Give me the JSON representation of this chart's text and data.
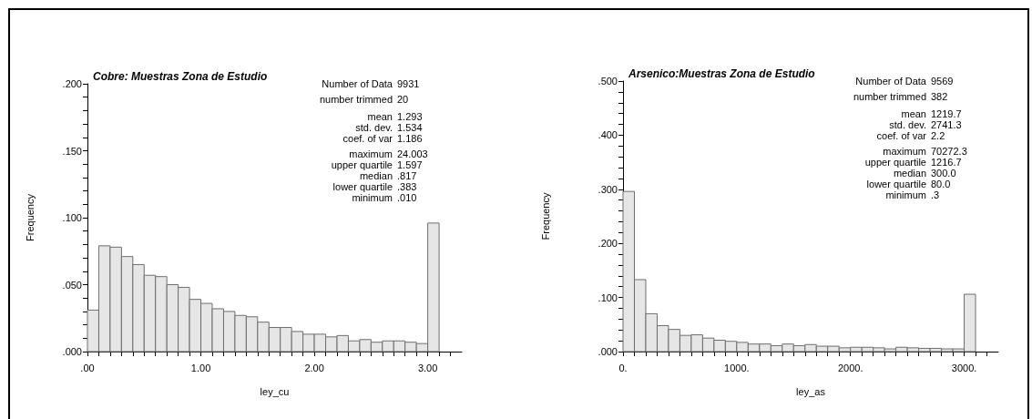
{
  "chart_data": [
    {
      "type": "histogram",
      "title": "Cobre: Muestras Zona de Estudio",
      "xlabel": "ley_cu",
      "ylabel": "Frequency",
      "color": "#e6e6e6",
      "bins": [
        0,
        0.1,
        0.2,
        0.3,
        0.4,
        0.5,
        0.6,
        0.7,
        0.8,
        0.9,
        1.0,
        1.1,
        1.2,
        1.3,
        1.4,
        1.5,
        1.6,
        1.7,
        1.8,
        1.9,
        2.0,
        2.1,
        2.2,
        2.3,
        2.4,
        2.5,
        2.6,
        2.7,
        2.8,
        2.9,
        3.0,
        3.1
      ],
      "values": [
        0.031,
        0.079,
        0.078,
        0.071,
        0.065,
        0.057,
        0.056,
        0.05,
        0.048,
        0.039,
        0.036,
        0.032,
        0.03,
        0.027,
        0.026,
        0.022,
        0.018,
        0.018,
        0.015,
        0.013,
        0.013,
        0.011,
        0.012,
        0.008,
        0.009,
        0.007,
        0.008,
        0.008,
        0.007,
        0.006,
        0.096
      ],
      "xlim": [
        0,
        3.3
      ],
      "xticks": [
        {
          "value": 0,
          "label": ".00"
        },
        {
          "value": 0.1,
          "label": null
        },
        {
          "value": 0.2,
          "label": null
        },
        {
          "value": 0.3,
          "label": null
        },
        {
          "value": 0.4,
          "label": null
        },
        {
          "value": 0.5,
          "label": null
        },
        {
          "value": 0.6,
          "label": null
        },
        {
          "value": 0.7,
          "label": null
        },
        {
          "value": 0.8,
          "label": null
        },
        {
          "value": 0.9,
          "label": null
        },
        {
          "value": 1,
          "label": "1.00"
        },
        {
          "value": 1.1,
          "label": null
        },
        {
          "value": 1.2,
          "label": null
        },
        {
          "value": 1.3,
          "label": null
        },
        {
          "value": 1.4,
          "label": null
        },
        {
          "value": 1.5,
          "label": null
        },
        {
          "value": 1.6,
          "label": null
        },
        {
          "value": 1.7,
          "label": null
        },
        {
          "value": 1.8,
          "label": null
        },
        {
          "value": 1.9,
          "label": null
        },
        {
          "value": 2,
          "label": "2.00"
        },
        {
          "value": 2.1,
          "label": null
        },
        {
          "value": 2.2,
          "label": null
        },
        {
          "value": 2.3,
          "label": null
        },
        {
          "value": 2.4,
          "label": null
        },
        {
          "value": 2.5,
          "label": null
        },
        {
          "value": 2.6,
          "label": null
        },
        {
          "value": 2.7,
          "label": null
        },
        {
          "value": 2.8,
          "label": null
        },
        {
          "value": 2.9,
          "label": null
        },
        {
          "value": 3,
          "label": "3.00"
        },
        {
          "value": 3.1,
          "label": null
        },
        {
          "value": 3.2,
          "label": null
        }
      ],
      "ylim": [
        0,
        0.2
      ],
      "yticks": [
        {
          "value": 0,
          "label": ".000"
        },
        {
          "value": 0.01,
          "label": null
        },
        {
          "value": 0.02,
          "label": null
        },
        {
          "value": 0.03,
          "label": null
        },
        {
          "value": 0.04,
          "label": null
        },
        {
          "value": 0.05,
          "label": ".050"
        },
        {
          "value": 0.06,
          "label": null
        },
        {
          "value": 0.07,
          "label": null
        },
        {
          "value": 0.08,
          "label": null
        },
        {
          "value": 0.09,
          "label": null
        },
        {
          "value": 0.1,
          "label": ".100"
        },
        {
          "value": 0.11,
          "label": null
        },
        {
          "value": 0.12,
          "label": null
        },
        {
          "value": 0.13,
          "label": null
        },
        {
          "value": 0.14,
          "label": null
        },
        {
          "value": 0.15,
          "label": ".150"
        },
        {
          "value": 0.16,
          "label": null
        },
        {
          "value": 0.17,
          "label": null
        },
        {
          "value": 0.18,
          "label": null
        },
        {
          "value": 0.19,
          "label": null
        },
        {
          "value": 0.2,
          "label": ".200"
        }
      ],
      "annotations": [
        "Number of Data 9931",
        "number trimmed 20",
        "mean 1.293",
        "std. dev. 1.534",
        "coef. of var 1.186",
        "maximum 24.003",
        "upper quartile 1.597",
        "median .817",
        "lower quartile .383",
        "minimum .010"
      ]
    },
    {
      "type": "histogram",
      "title": "Arsenico:Muestras Zona de Estudio",
      "xlabel": "ley_as",
      "ylabel": "Frequency",
      "color": "#e6e6e6",
      "bins": [
        0,
        100,
        200,
        300,
        400,
        500,
        600,
        700,
        800,
        900,
        1000,
        1100,
        1200,
        1300,
        1400,
        1500,
        1600,
        1700,
        1800,
        1900,
        2000,
        2100,
        2200,
        2300,
        2400,
        2500,
        2600,
        2700,
        2800,
        2900,
        3000,
        3100
      ],
      "values": [
        0.296,
        0.133,
        0.07,
        0.048,
        0.041,
        0.03,
        0.031,
        0.025,
        0.021,
        0.019,
        0.017,
        0.014,
        0.014,
        0.011,
        0.014,
        0.011,
        0.013,
        0.01,
        0.01,
        0.007,
        0.008,
        0.008,
        0.007,
        0.005,
        0.008,
        0.007,
        0.006,
        0.006,
        0.005,
        0.005,
        0.106
      ],
      "xlim": [
        0,
        3300
      ],
      "xticks": [
        {
          "value": 0,
          "label": "0."
        },
        {
          "value": 100,
          "label": null
        },
        {
          "value": 200,
          "label": null
        },
        {
          "value": 300,
          "label": null
        },
        {
          "value": 400,
          "label": null
        },
        {
          "value": 500,
          "label": null
        },
        {
          "value": 600,
          "label": null
        },
        {
          "value": 700,
          "label": null
        },
        {
          "value": 800,
          "label": null
        },
        {
          "value": 900,
          "label": null
        },
        {
          "value": 1000,
          "label": "1000."
        },
        {
          "value": 1100,
          "label": null
        },
        {
          "value": 1200,
          "label": null
        },
        {
          "value": 1300,
          "label": null
        },
        {
          "value": 1400,
          "label": null
        },
        {
          "value": 1500,
          "label": null
        },
        {
          "value": 1600,
          "label": null
        },
        {
          "value": 1700,
          "label": null
        },
        {
          "value": 1800,
          "label": null
        },
        {
          "value": 1900,
          "label": null
        },
        {
          "value": 2000,
          "label": "2000."
        },
        {
          "value": 2100,
          "label": null
        },
        {
          "value": 2200,
          "label": null
        },
        {
          "value": 2300,
          "label": null
        },
        {
          "value": 2400,
          "label": null
        },
        {
          "value": 2500,
          "label": null
        },
        {
          "value": 2600,
          "label": null
        },
        {
          "value": 2700,
          "label": null
        },
        {
          "value": 2800,
          "label": null
        },
        {
          "value": 2900,
          "label": null
        },
        {
          "value": 3000,
          "label": "3000."
        },
        {
          "value": 3100,
          "label": null
        },
        {
          "value": 3200,
          "label": null
        }
      ],
      "ylim": [
        0,
        0.5
      ],
      "yticks": [
        {
          "value": 0,
          "label": ".000"
        },
        {
          "value": 0.02,
          "label": null
        },
        {
          "value": 0.04,
          "label": null
        },
        {
          "value": 0.06,
          "label": null
        },
        {
          "value": 0.08,
          "label": null
        },
        {
          "value": 0.1,
          "label": ".100"
        },
        {
          "value": 0.12,
          "label": null
        },
        {
          "value": 0.14,
          "label": null
        },
        {
          "value": 0.16,
          "label": null
        },
        {
          "value": 0.18,
          "label": null
        },
        {
          "value": 0.2,
          "label": ".200"
        },
        {
          "value": 0.22,
          "label": null
        },
        {
          "value": 0.24,
          "label": null
        },
        {
          "value": 0.26,
          "label": null
        },
        {
          "value": 0.28,
          "label": null
        },
        {
          "value": 0.3,
          "label": ".300"
        },
        {
          "value": 0.32,
          "label": null
        },
        {
          "value": 0.34,
          "label": null
        },
        {
          "value": 0.36,
          "label": null
        },
        {
          "value": 0.38,
          "label": null
        },
        {
          "value": 0.4,
          "label": ".400"
        },
        {
          "value": 0.42,
          "label": null
        },
        {
          "value": 0.44,
          "label": null
        },
        {
          "value": 0.46,
          "label": null
        },
        {
          "value": 0.48,
          "label": null
        },
        {
          "value": 0.5,
          "label": ".500"
        }
      ],
      "annotations": [
        "Number of Data 9569",
        "number trimmed 382",
        "mean 1219.7",
        "std. dev. 2741.3",
        "coef. of var 2.2",
        "maximum 70272.3",
        "upper quartile 1216.7",
        "median 300.0",
        "lower quartile 80.0",
        "minimum .3"
      ]
    }
  ]
}
